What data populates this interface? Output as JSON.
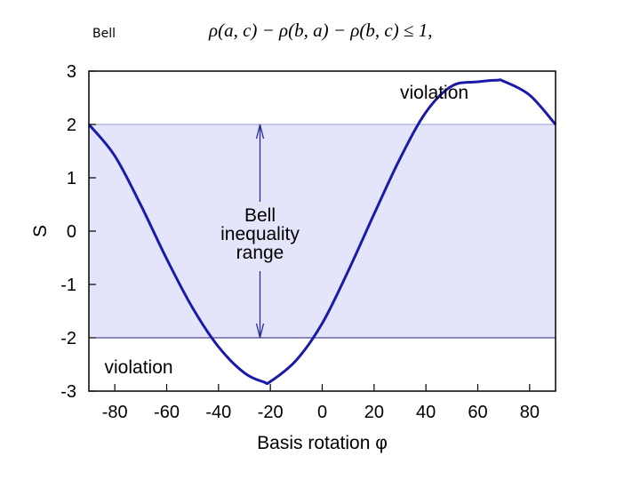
{
  "slide": {
    "label": "Bell",
    "formula": "ρ(a, c) − ρ(b, a) − ρ(b, c) ≤ 1,"
  },
  "chart_data": {
    "type": "line",
    "title": "",
    "xlabel": "Basis rotation φ",
    "ylabel": "S",
    "xlim": [
      -90,
      90
    ],
    "ylim": [
      -3,
      3
    ],
    "xticks": [
      -80,
      -60,
      -40,
      -20,
      0,
      20,
      40,
      60,
      80
    ],
    "yticks": [
      3,
      2,
      1,
      0,
      -1,
      -2,
      -3
    ],
    "grid": false,
    "series": [
      {
        "x": [
          -90,
          -80,
          -70,
          -60,
          -50,
          -40,
          -30,
          -22.5,
          -20,
          -10,
          0,
          10,
          20,
          30,
          40,
          50,
          60,
          67.5,
          70,
          80,
          90
        ],
        "y": [
          2.0,
          1.41,
          0.49,
          -0.52,
          -1.44,
          -2.17,
          -2.66,
          -2.83,
          -2.82,
          -2.42,
          -1.73,
          -0.75,
          0.32,
          1.36,
          2.23,
          2.72,
          2.8,
          2.83,
          2.81,
          2.55,
          2.0
        ],
        "color": "#1a1aaa"
      }
    ],
    "bands": [
      {
        "y_from": -2,
        "y_to": 2,
        "color": "#e4e4fb"
      }
    ],
    "annotations": [
      {
        "text": "violation",
        "x": 30,
        "y": 2.6
      },
      {
        "text": "violation",
        "x": -84,
        "y": -2.55
      },
      {
        "text": "Bell",
        "x": -24,
        "y": 0.3
      },
      {
        "text": "inequality",
        "x": -24,
        "y": -0.05
      },
      {
        "text": "range",
        "x": -24,
        "y": -0.4
      }
    ]
  }
}
